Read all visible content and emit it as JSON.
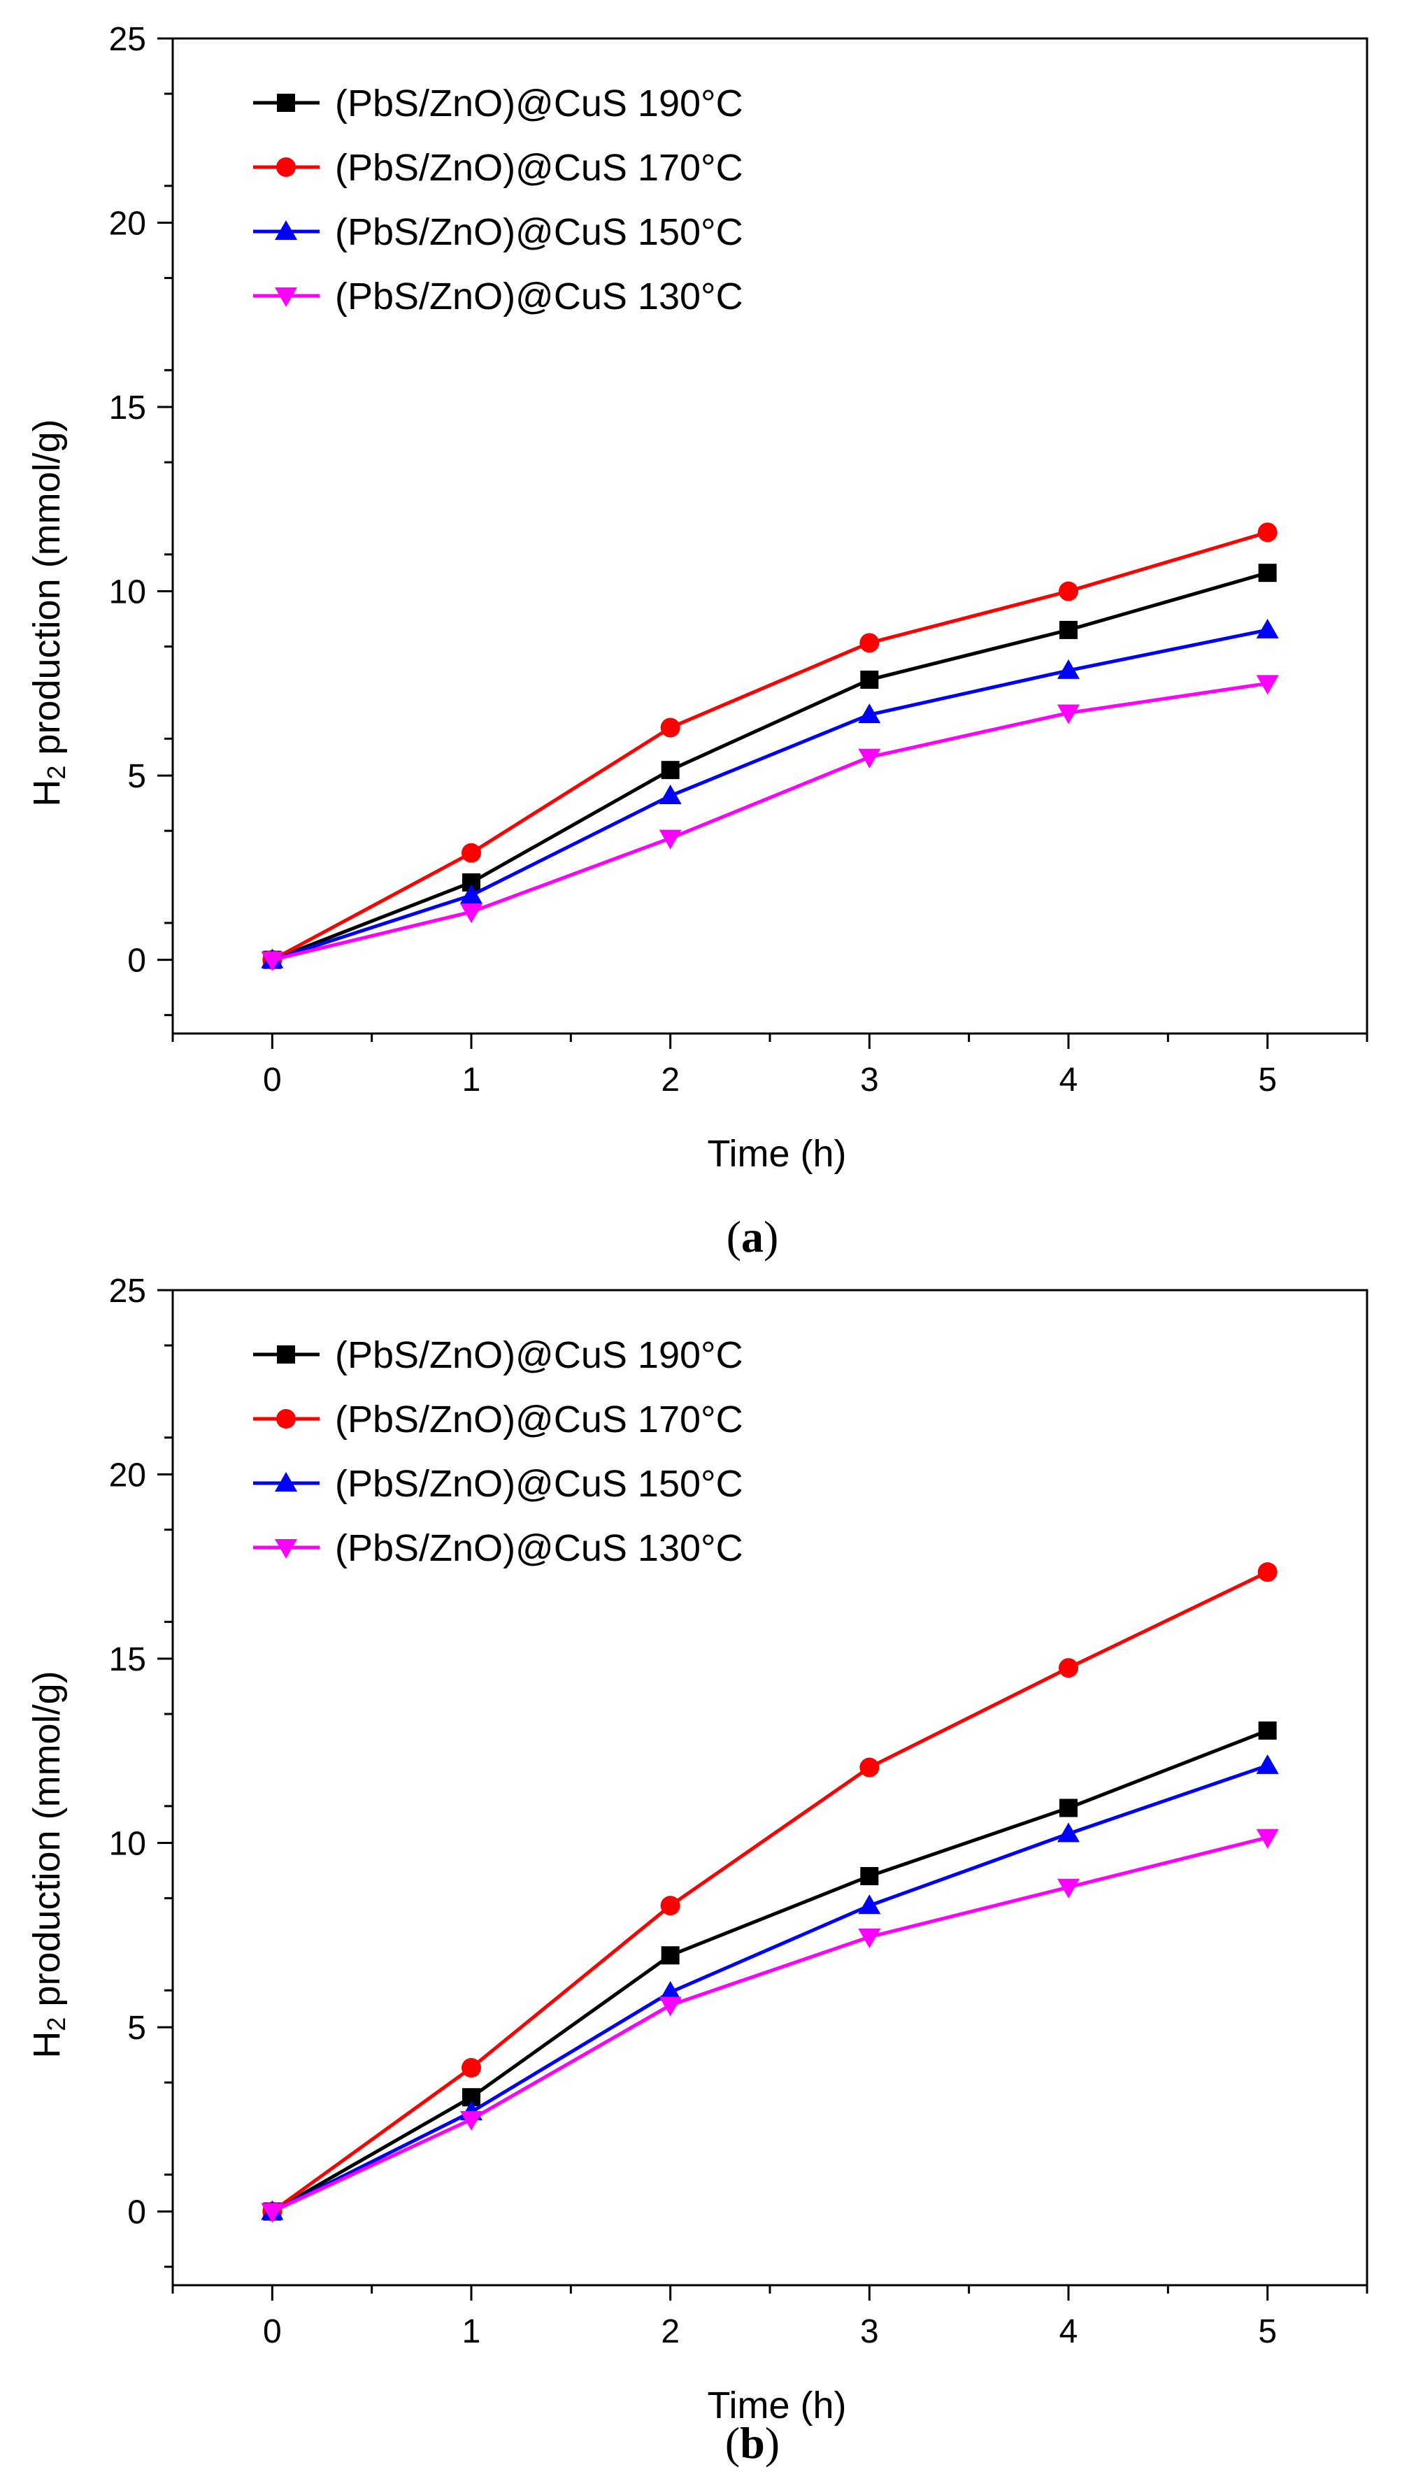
{
  "chart_data": [
    {
      "type": "line",
      "panel_label_open": "(",
      "panel_label_letter": "a",
      "panel_label_close": ")",
      "xlabel": "Time (h)",
      "ylabel_prefix": "H",
      "ylabel_sub": "2",
      "ylabel_suffix": " production (mmol/g)",
      "xlim": [
        -0.5,
        5.5
      ],
      "ylim": [
        -2,
        25
      ],
      "xticks": [
        "0",
        "1",
        "2",
        "3",
        "4",
        "5"
      ],
      "yticks": [
        "0",
        "5",
        "10",
        "15",
        "20",
        "25"
      ],
      "legend_position": "top-left",
      "x": [
        0,
        1,
        2,
        3,
        4,
        5
      ],
      "series": [
        {
          "name": "(PbS/ZnO)@CuS 190°C",
          "color": "#000000",
          "marker": "square",
          "values": [
            0,
            2.1,
            5.15,
            7.6,
            8.95,
            10.5
          ]
        },
        {
          "name": "(PbS/ZnO)@CuS 170°C",
          "color": "#ff0000",
          "marker": "circle",
          "values": [
            0,
            2.9,
            6.3,
            8.6,
            10.0,
            11.6
          ]
        },
        {
          "name": "(PbS/ZnO)@CuS 150°C",
          "color": "#0000ff",
          "marker": "triangle-up",
          "values": [
            0,
            1.75,
            4.45,
            6.65,
            7.85,
            8.95
          ]
        },
        {
          "name": "(PbS/ZnO)@CuS 130°C",
          "color": "#ff00ff",
          "marker": "triangle-down",
          "values": [
            0,
            1.3,
            3.3,
            5.5,
            6.7,
            7.5
          ]
        }
      ]
    },
    {
      "type": "line",
      "panel_label_open": "(",
      "panel_label_letter": "b",
      "panel_label_close": ")",
      "xlabel": "Time (h)",
      "ylabel_prefix": "H",
      "ylabel_sub": "2",
      "ylabel_suffix": " production (mmol/g)",
      "xlim": [
        -0.5,
        5.5
      ],
      "ylim": [
        -2,
        25
      ],
      "xticks": [
        "0",
        "1",
        "2",
        "3",
        "4",
        "5"
      ],
      "yticks": [
        "0",
        "5",
        "10",
        "15",
        "20",
        "25"
      ],
      "legend_position": "top-left",
      "x": [
        0,
        1,
        2,
        3,
        4,
        5
      ],
      "series": [
        {
          "name": "(PbS/ZnO)@CuS 190°C",
          "color": "#000000",
          "marker": "square",
          "values": [
            0,
            3.1,
            6.95,
            9.1,
            10.95,
            13.05
          ]
        },
        {
          "name": "(PbS/ZnO)@CuS 170°C",
          "color": "#ff0000",
          "marker": "circle",
          "values": [
            0,
            3.9,
            8.3,
            12.05,
            14.75,
            17.35
          ]
        },
        {
          "name": "(PbS/ZnO)@CuS 150°C",
          "color": "#0000ff",
          "marker": "triangle-up",
          "values": [
            0,
            2.7,
            5.95,
            8.3,
            10.25,
            12.1
          ]
        },
        {
          "name": "(PbS/ZnO)@CuS 130°C",
          "color": "#ff00ff",
          "marker": "triangle-down",
          "values": [
            0,
            2.5,
            5.6,
            7.45,
            8.8,
            10.15
          ]
        }
      ]
    }
  ]
}
